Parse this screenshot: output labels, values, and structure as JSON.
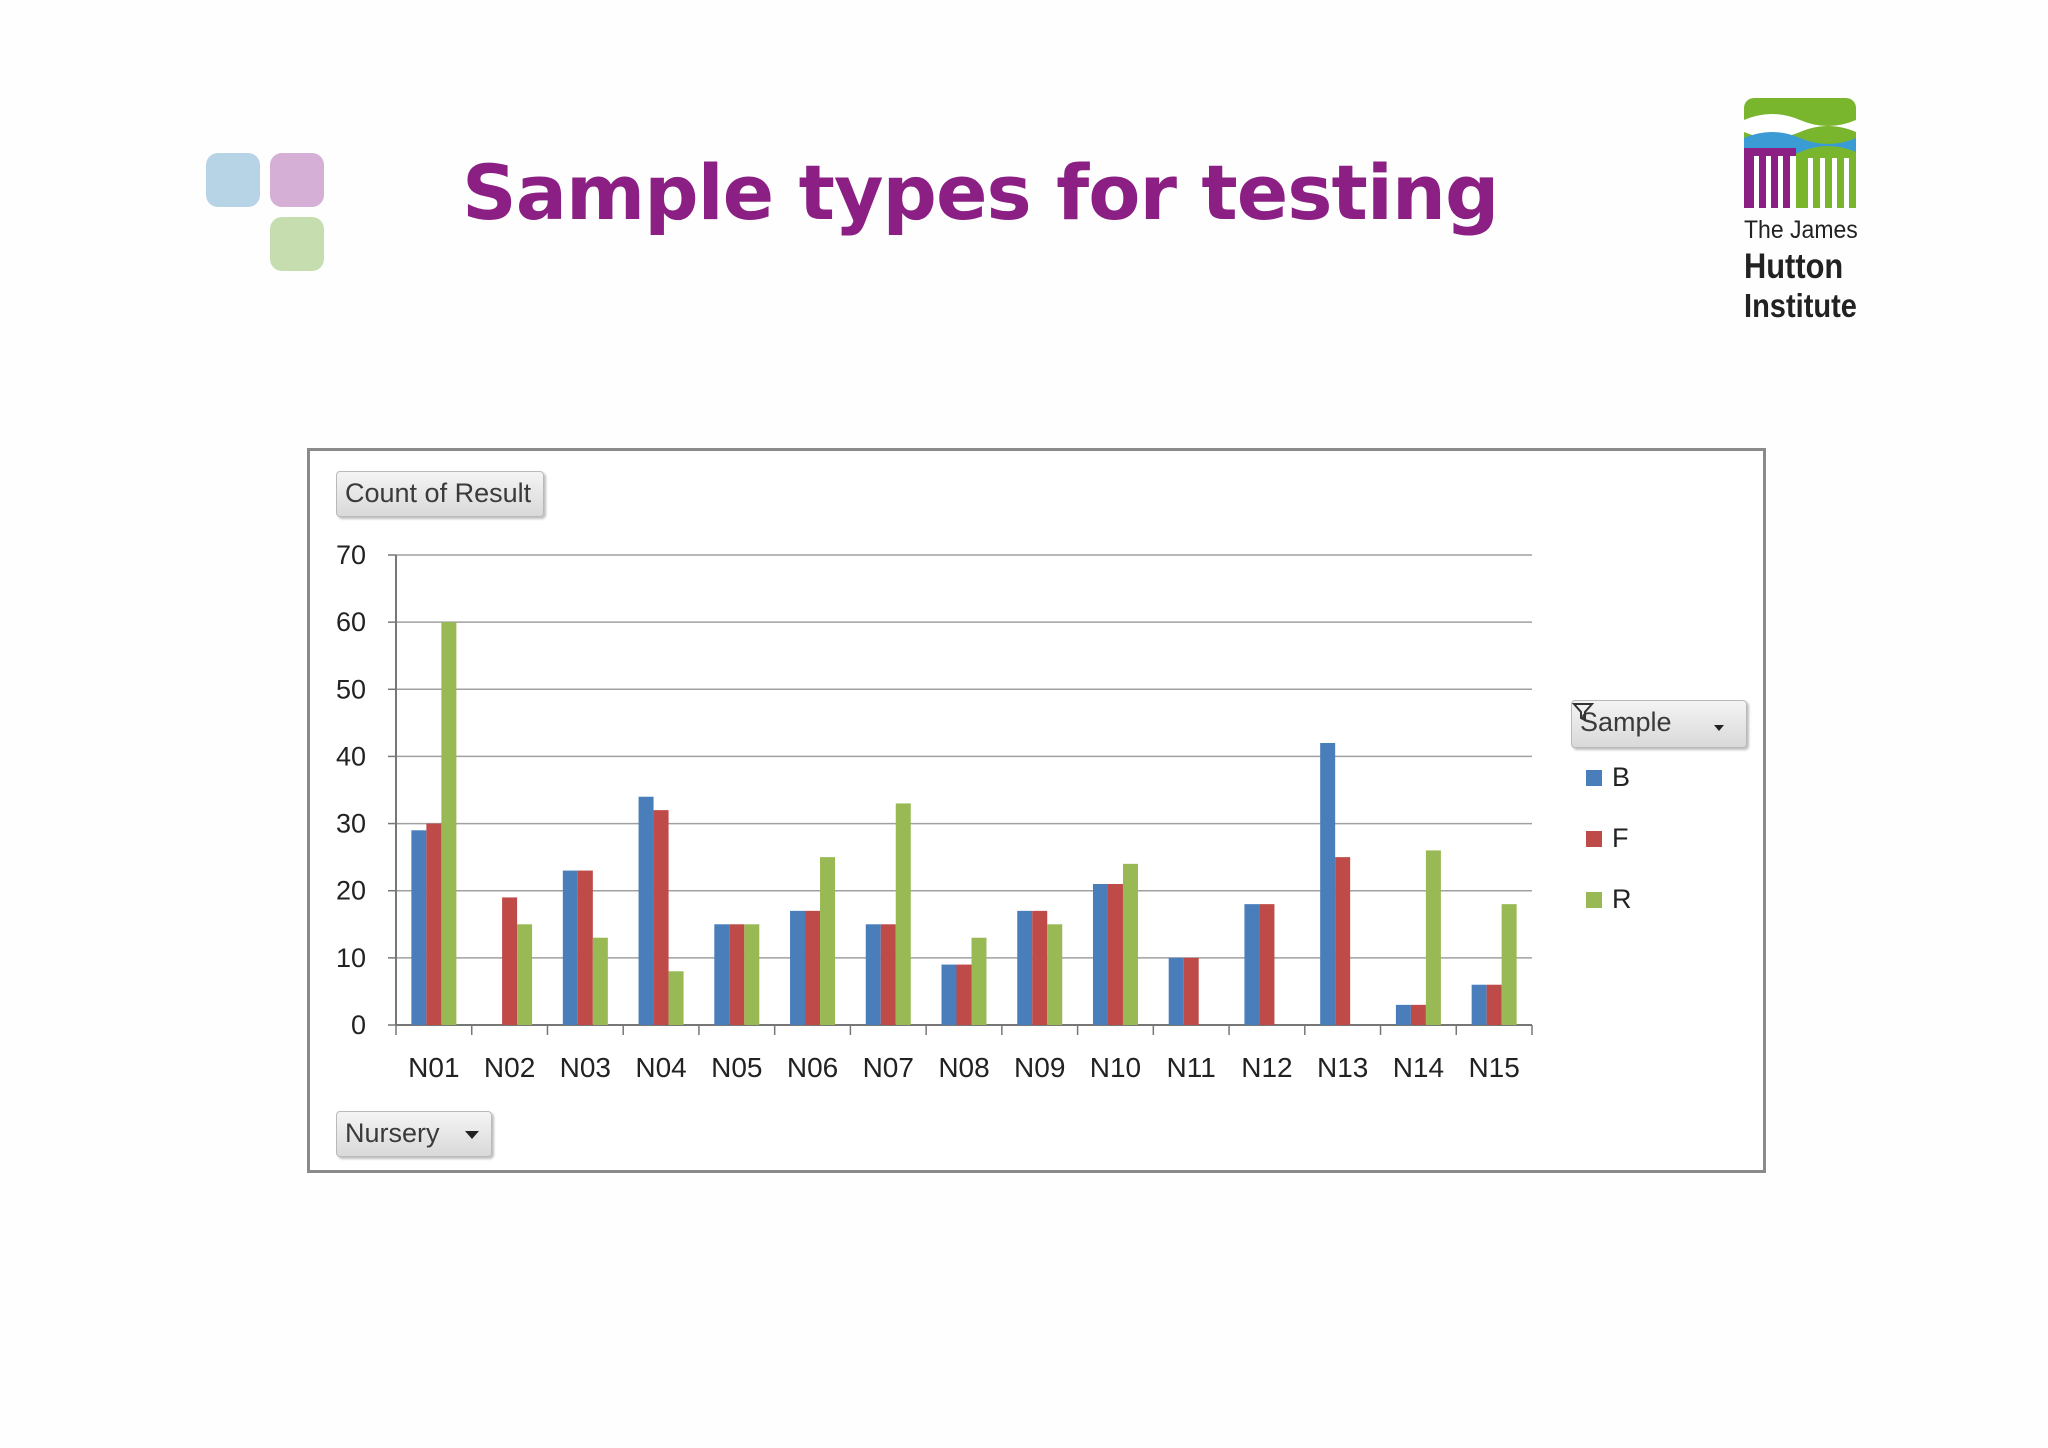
{
  "slide": {
    "title": "Sample types for testing",
    "logo": {
      "line1": "The James",
      "line2": "Hutton",
      "line3": "Institute"
    }
  },
  "pivot": {
    "value_field": "Count of Result",
    "row_field": "Nursery",
    "legend_field": "Sample"
  },
  "colors": {
    "B": "#4a7ebb",
    "F": "#be4b48",
    "R": "#98b954",
    "title": "#8b1f83"
  },
  "chart_data": {
    "type": "bar",
    "categories": [
      "N01",
      "N02",
      "N03",
      "N04",
      "N05",
      "N06",
      "N07",
      "N08",
      "N09",
      "N10",
      "N11",
      "N12",
      "N13",
      "N14",
      "N15"
    ],
    "series": [
      {
        "name": "B",
        "values": [
          29,
          0,
          23,
          34,
          15,
          17,
          15,
          9,
          17,
          21,
          10,
          18,
          42,
          3,
          6
        ]
      },
      {
        "name": "F",
        "values": [
          30,
          19,
          23,
          32,
          15,
          17,
          15,
          9,
          17,
          21,
          10,
          18,
          25,
          3,
          6
        ]
      },
      {
        "name": "R",
        "values": [
          60,
          15,
          13,
          8,
          15,
          25,
          33,
          13,
          15,
          24,
          0,
          0,
          0,
          26,
          18
        ]
      }
    ],
    "yticks": [
      "0",
      "10",
      "20",
      "30",
      "40",
      "50",
      "60",
      "70"
    ],
    "ylim": [
      0,
      70
    ],
    "grid": true,
    "legend": "right"
  }
}
